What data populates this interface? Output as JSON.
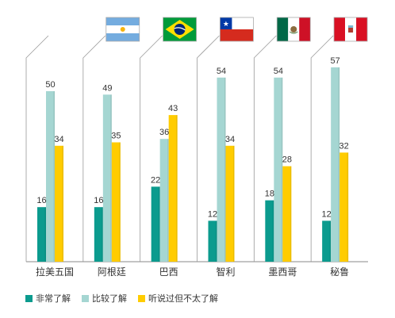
{
  "chart_data": {
    "type": "bar",
    "categories": [
      "拉美五国",
      "阿根廷",
      "巴西",
      "智利",
      "墨西哥",
      "秘鲁"
    ],
    "series": [
      {
        "name": "非常了解",
        "color": "#0b9b8e",
        "values": [
          16,
          16,
          22,
          12,
          18,
          12
        ]
      },
      {
        "name": "比较了解",
        "color": "#a5d6d2",
        "values": [
          50,
          49,
          36,
          54,
          54,
          57
        ]
      },
      {
        "name": "听说过但不太了解",
        "color": "#ffcc00",
        "values": [
          34,
          35,
          43,
          34,
          28,
          32
        ]
      }
    ],
    "ylim": [
      0,
      60
    ],
    "flags": [
      "",
      "argentina-flag",
      "brazil-flag",
      "chile-flag",
      "mexico-flag",
      "peru-flag"
    ],
    "legend_position": "bottom-left"
  }
}
